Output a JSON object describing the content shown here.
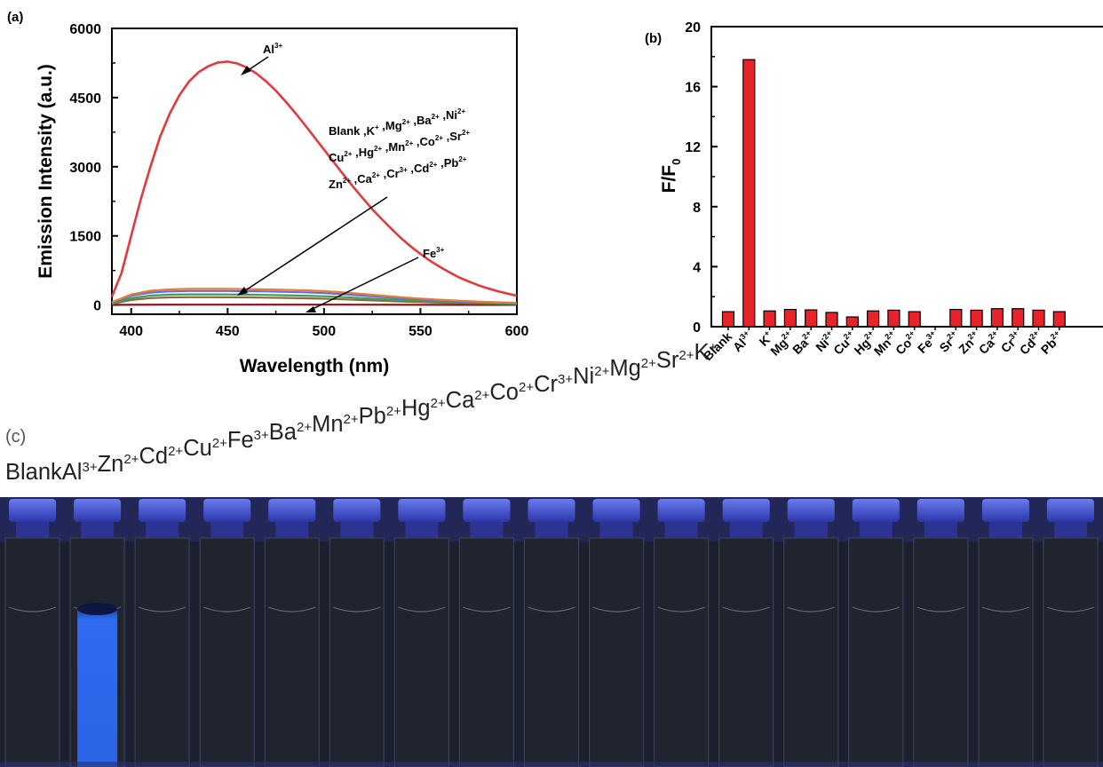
{
  "panels": {
    "a": {
      "label": "(a)"
    },
    "b": {
      "label": "(b)"
    },
    "c": {
      "label": "(c)"
    }
  },
  "colors": {
    "al_curve": "#e0393e",
    "bar_fill": "#e8242a",
    "vial_glow": "#3a7dff",
    "photo_bg": "#1b1f2e",
    "cap": "#3348c8"
  },
  "chart_data": [
    {
      "type": "line",
      "panel": "(a)",
      "xlabel": "Wavelength (nm)",
      "ylabel": "Emission Intensity (a.u.)",
      "xlim": [
        390,
        600
      ],
      "ylim": [
        -200,
        6000
      ],
      "xticks": [
        400,
        450,
        500,
        550,
        600
      ],
      "yticks": [
        0,
        1500,
        3000,
        4500,
        6000
      ],
      "series": [
        {
          "name": "Al3+",
          "color": "#e0393e",
          "x": [
            390,
            395,
            400,
            405,
            410,
            415,
            420,
            425,
            430,
            435,
            440,
            445,
            450,
            455,
            460,
            465,
            470,
            475,
            480,
            485,
            490,
            495,
            500,
            505,
            510,
            515,
            520,
            525,
            530,
            535,
            540,
            545,
            550,
            555,
            560,
            565,
            570,
            575,
            580,
            585,
            590,
            595,
            600
          ],
          "y": [
            180,
            700,
            1500,
            2300,
            3000,
            3650,
            4150,
            4550,
            4850,
            5050,
            5180,
            5260,
            5280,
            5240,
            5150,
            5020,
            4850,
            4650,
            4420,
            4170,
            3910,
            3640,
            3370,
            3100,
            2830,
            2570,
            2320,
            2080,
            1860,
            1650,
            1450,
            1270,
            1110,
            960,
            830,
            710,
            600,
            510,
            430,
            360,
            300,
            250,
            200
          ]
        },
        {
          "name": "",
          "color": "#e67c3a",
          "x": [
            390,
            400,
            410,
            420,
            430,
            440,
            450,
            460,
            470,
            480,
            490,
            500,
            510,
            520,
            530,
            540,
            550,
            560,
            570,
            580,
            590,
            600
          ],
          "y": [
            60,
            230,
            310,
            340,
            350,
            350,
            350,
            345,
            340,
            330,
            320,
            300,
            275,
            240,
            205,
            170,
            140,
            115,
            95,
            75,
            60,
            50
          ]
        },
        {
          "name": "",
          "color": "#6b6bd8",
          "x": [
            390,
            400,
            410,
            420,
            430,
            440,
            450,
            460,
            470,
            480,
            490,
            500,
            510,
            520,
            530,
            540,
            550,
            560,
            570,
            580,
            590,
            600
          ],
          "y": [
            50,
            200,
            270,
            295,
            305,
            305,
            305,
            300,
            295,
            285,
            275,
            258,
            235,
            205,
            175,
            145,
            120,
            98,
            80,
            64,
            52,
            42
          ]
        },
        {
          "name": "",
          "color": "#3f9c5a",
          "x": [
            390,
            400,
            410,
            420,
            430,
            440,
            450,
            460,
            470,
            480,
            490,
            500,
            510,
            520,
            530,
            540,
            550,
            560,
            570,
            580,
            590,
            600
          ],
          "y": [
            35,
            150,
            205,
            225,
            232,
            232,
            230,
            226,
            220,
            212,
            203,
            190,
            172,
            150,
            128,
            106,
            88,
            72,
            58,
            47,
            38,
            31
          ]
        },
        {
          "name": "",
          "color": "#8a6a3a",
          "x": [
            390,
            400,
            410,
            420,
            430,
            440,
            450,
            460,
            470,
            480,
            490,
            500,
            510,
            520,
            530,
            540,
            550,
            560,
            570,
            580,
            590,
            600
          ],
          "y": [
            25,
            110,
            150,
            165,
            170,
            170,
            168,
            165,
            160,
            154,
            147,
            137,
            124,
            108,
            92,
            76,
            63,
            52,
            42,
            34,
            27,
            22
          ]
        },
        {
          "name": "Fe3+",
          "color": "#8b1010",
          "x": [
            390,
            420,
            450,
            480,
            510,
            540,
            570,
            600
          ],
          "y": [
            5,
            8,
            8,
            8,
            7,
            6,
            5,
            4
          ]
        }
      ],
      "annotations": [
        {
          "text": "Al",
          "sup": "3+"
        },
        {
          "text": "Fe",
          "sup": "3+"
        },
        {
          "lines": [
            [
              [
                "Blank ,K",
                ""
              ],
              [
                "",
                "+"
              ],
              [
                " ,Mg",
                ""
              ],
              [
                "",
                "2+"
              ],
              [
                " ,Ba",
                ""
              ],
              [
                "",
                "2+"
              ],
              [
                " ,Ni",
                ""
              ],
              [
                "",
                "2+"
              ]
            ],
            [
              [
                "Cu",
                ""
              ],
              [
                "",
                "2+"
              ],
              [
                " ,Hg",
                ""
              ],
              [
                "",
                "2+"
              ],
              [
                " ,Mn",
                ""
              ],
              [
                "",
                "2+"
              ],
              [
                " ,Co",
                ""
              ],
              [
                "",
                "2+"
              ],
              [
                " ,Sr",
                ""
              ],
              [
                "",
                "2+"
              ]
            ],
            [
              [
                "Zn",
                ""
              ],
              [
                "",
                "2+"
              ],
              [
                " ,Ca",
                ""
              ],
              [
                "",
                "2+"
              ],
              [
                " ,Cr",
                ""
              ],
              [
                "",
                "3+"
              ],
              [
                " ,Cd",
                ""
              ],
              [
                "",
                "2+"
              ],
              [
                " ,Pb",
                ""
              ],
              [
                "",
                "2+"
              ]
            ]
          ]
        }
      ]
    },
    {
      "type": "bar",
      "panel": "(b)",
      "ylabel": "F/F",
      "ylabel_sub": "0",
      "ylim": [
        0,
        20
      ],
      "yticks": [
        0,
        4,
        8,
        12,
        16,
        20
      ],
      "categories": [
        {
          "base": "Blank",
          "sup": ""
        },
        {
          "base": "Al",
          "sup": "3+"
        },
        {
          "base": "K",
          "sup": "+"
        },
        {
          "base": "Mg",
          "sup": "2+"
        },
        {
          "base": "Ba",
          "sup": "2+"
        },
        {
          "base": "Ni",
          "sup": "2+"
        },
        {
          "base": "Cu",
          "sup": "2+"
        },
        {
          "base": "Hg",
          "sup": "2+"
        },
        {
          "base": "Mn",
          "sup": "2+"
        },
        {
          "base": "Co",
          "sup": "2+"
        },
        {
          "base": "Fe",
          "sup": "3+"
        },
        {
          "base": "Sr",
          "sup": "2+"
        },
        {
          "base": "Zn",
          "sup": "2+"
        },
        {
          "base": "Ca",
          "sup": "2+"
        },
        {
          "base": "Cr",
          "sup": "3+"
        },
        {
          "base": "Cd",
          "sup": "2+"
        },
        {
          "base": "Pb",
          "sup": "2+"
        }
      ],
      "values": [
        1.0,
        17.8,
        1.05,
        1.15,
        1.12,
        0.95,
        0.65,
        1.05,
        1.1,
        1.0,
        0.02,
        1.15,
        1.1,
        1.2,
        1.2,
        1.1,
        1.0
      ]
    }
  ],
  "photo": {
    "labels": [
      {
        "base": "Blank",
        "sup": ""
      },
      {
        "base": "Al",
        "sup": "3+"
      },
      {
        "base": "Zn",
        "sup": "2+"
      },
      {
        "base": "Cd",
        "sup": "2+"
      },
      {
        "base": "Cu",
        "sup": "2+"
      },
      {
        "base": "Fe",
        "sup": "3+"
      },
      {
        "base": "Ba",
        "sup": "2+"
      },
      {
        "base": "Mn",
        "sup": "2+"
      },
      {
        "base": "Pb",
        "sup": "2+"
      },
      {
        "base": "Hg",
        "sup": "2+"
      },
      {
        "base": "Ca",
        "sup": "2+"
      },
      {
        "base": "Co",
        "sup": "2+"
      },
      {
        "base": "Cr",
        "sup": "3+"
      },
      {
        "base": "Ni",
        "sup": "2+"
      },
      {
        "base": "Mg",
        "sup": "2+"
      },
      {
        "base": "Sr",
        "sup": "2+"
      },
      {
        "base": "K",
        "sup": "+"
      }
    ],
    "glowing_vial_index": 1
  }
}
